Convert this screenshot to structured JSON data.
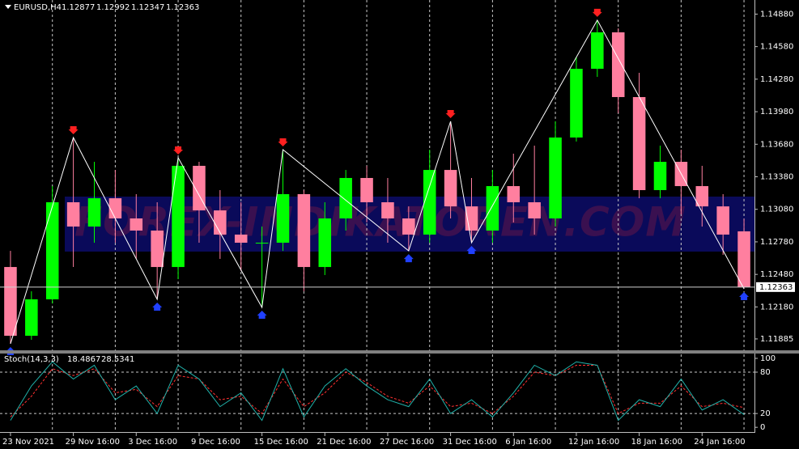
{
  "chart_data": [
    {
      "type": "candlestick",
      "title": "EURUSD,H4",
      "watermark": "FOREX-INDIKATOREN.COM",
      "categories": [
        "23 Nov 2021",
        null,
        null,
        "29 Nov 16:00",
        null,
        null,
        "3 Dec 16:00",
        null,
        null,
        "9 Dec 16:00",
        null,
        null,
        "15 Dec 16:00",
        null,
        null,
        "21 Dec 16:00",
        null,
        null,
        "27 Dec 16:00",
        null,
        null,
        "31 Dec 16:00",
        null,
        null,
        "6 Jan 16:00",
        null,
        null,
        "12 Jan 16:00",
        null,
        null,
        "18 Jan 16:00",
        null,
        null,
        "24 Jan 16:00",
        null,
        null
      ],
      "open": [
        1.12548,
        1.11914,
        1.1225,
        1.13145,
        1.12921,
        1.13182,
        1.12996,
        1.12884,
        1.12548,
        1.13481,
        1.1307,
        1.12847,
        1.12772,
        1.12772,
        1.1322,
        1.12548,
        1.12996,
        1.13369,
        1.13145,
        1.12996,
        1.12847,
        1.13443,
        1.13107,
        1.12884,
        1.13294,
        1.13145,
        1.12996,
        1.13742,
        1.14376,
        1.14712,
        1.14115,
        1.13257,
        1.13518,
        1.13294,
        1.13107,
        1.12877
      ],
      "high": [
        1.12697,
        1.12324,
        1.13294,
        1.13742,
        1.13518,
        1.13443,
        1.1322,
        1.13145,
        1.13555,
        1.13518,
        1.13257,
        1.13145,
        1.12921,
        1.1363,
        1.13257,
        1.13145,
        1.13443,
        1.13481,
        1.13369,
        1.13107,
        1.1363,
        1.13891,
        1.13369,
        1.13443,
        1.13593,
        1.13667,
        1.13891,
        1.14488,
        1.14824,
        1.14749,
        1.14339,
        1.13667,
        1.1363,
        1.13481,
        1.1322,
        1.12992
      ],
      "low": [
        1.1184,
        1.11877,
        1.12212,
        1.12548,
        1.12772,
        1.12772,
        1.12623,
        1.1225,
        1.12436,
        1.12772,
        1.12623,
        1.12511,
        1.12175,
        1.12697,
        1.12324,
        1.12474,
        1.12884,
        1.12959,
        1.12772,
        1.12697,
        1.12772,
        1.12996,
        1.12772,
        1.12772,
        1.12959,
        1.12847,
        1.12921,
        1.13705,
        1.14301,
        1.13966,
        1.13182,
        1.13182,
        1.13033,
        1.12921,
        1.1266,
        1.12347
      ],
      "close": [
        1.11914,
        1.1225,
        1.13145,
        1.12921,
        1.13182,
        1.12996,
        1.12884,
        1.12548,
        1.13481,
        1.1307,
        1.12847,
        1.12772,
        1.12772,
        1.1322,
        1.12548,
        1.12996,
        1.13369,
        1.13145,
        1.12996,
        1.12847,
        1.13443,
        1.13107,
        1.12884,
        1.13294,
        1.13145,
        1.12996,
        1.13742,
        1.14376,
        1.14712,
        1.14115,
        1.13257,
        1.13518,
        1.13294,
        1.13107,
        1.12847,
        1.12363
      ],
      "up_color": "#00ff00",
      "down_color": "#ff7f9f",
      "zigzag_color": "#ffffff",
      "ylim": [
        1.1178,
        1.1501
      ],
      "yticks": [
        {
          "value": 1.1488,
          "label": "1.14880"
        },
        {
          "value": 1.1458,
          "label": "1.14580"
        },
        {
          "value": 1.1428,
          "label": "1.14280"
        },
        {
          "value": 1.1398,
          "label": "1.13980"
        },
        {
          "value": 1.1368,
          "label": "1.13680"
        },
        {
          "value": 1.1338,
          "label": "1.13380"
        },
        {
          "value": 1.1308,
          "label": "1.13080"
        },
        {
          "value": 1.1278,
          "label": "1.12780"
        },
        {
          "value": 1.1248,
          "label": "1.12480"
        },
        {
          "value": 1.1218,
          "label": "1.12180"
        },
        {
          "value": 1.11885,
          "label": "1.11885"
        }
      ],
      "grid": true
    },
    {
      "type": "line",
      "title": "Stoch(14,3,3)",
      "series": [
        {
          "color": "#20b2aa",
          "values": [
            10,
            60,
            95,
            70,
            90,
            40,
            60,
            20,
            90,
            70,
            30,
            50,
            10,
            85,
            15,
            60,
            85,
            60,
            40,
            30,
            70,
            20,
            40,
            15,
            50,
            90,
            75,
            95,
            90,
            10,
            40,
            30,
            70,
            25,
            40,
            18.4867
          ]
        },
        {
          "color": "#ff3030",
          "values": [
            15,
            45,
            85,
            75,
            85,
            50,
            55,
            30,
            75,
            70,
            40,
            45,
            20,
            70,
            30,
            50,
            80,
            65,
            45,
            35,
            60,
            30,
            35,
            20,
            45,
            80,
            75,
            90,
            90,
            20,
            35,
            35,
            60,
            30,
            35,
            28.5341
          ]
        }
      ],
      "ylim": [
        -8,
        107
      ],
      "yticks": [
        0,
        20,
        80,
        100
      ],
      "levels": [
        20,
        80
      ]
    }
  ]
}
